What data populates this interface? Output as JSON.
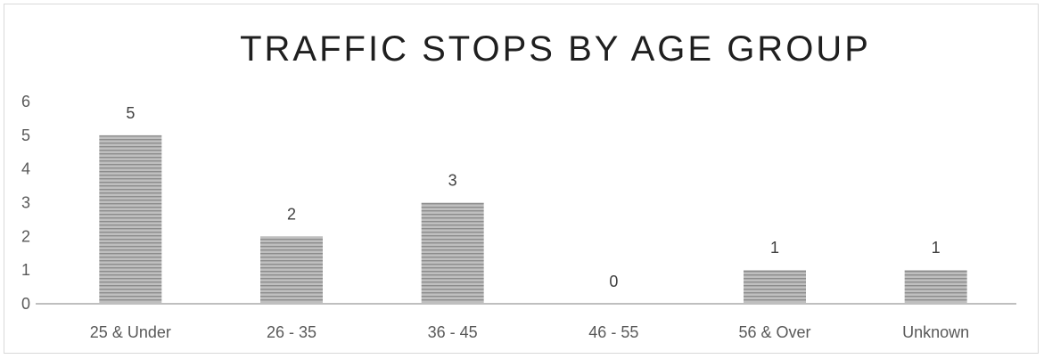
{
  "chart_data": {
    "type": "bar",
    "title": "TRAFFIC STOPS BY AGE GROUP",
    "categories": [
      "25 & Under",
      "26 - 35",
      "36 - 45",
      "46 - 55",
      "56 & Over",
      "Unknown"
    ],
    "values": [
      5,
      2,
      3,
      0,
      1,
      1
    ],
    "ylim": [
      0,
      6
    ],
    "yticks": [
      "0",
      "1",
      "2",
      "3",
      "4",
      "5",
      "6"
    ],
    "data_labels": [
      "5",
      "2",
      "3",
      "0",
      "1",
      "1"
    ],
    "grid": false,
    "legend": "none",
    "bar_color": "#bfbfbf",
    "bar_stripe_color": "#8c8c8c",
    "axis_color": "#bfbfbf"
  }
}
